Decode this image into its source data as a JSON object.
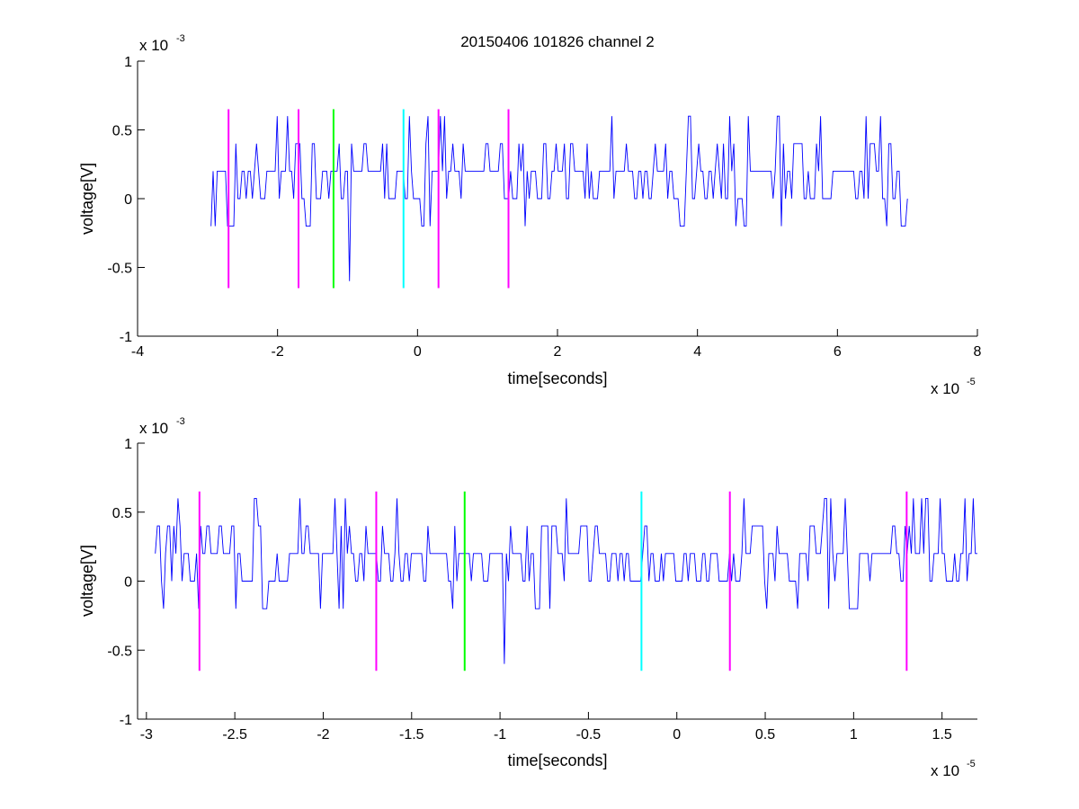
{
  "colors": {
    "background": "#ffffff",
    "axis": "#000000",
    "signal": "#0000ff",
    "marker_magenta": "#ff00ff",
    "marker_green": "#00ff00",
    "marker_cyan": "#00ffff"
  },
  "chart_data": [
    {
      "type": "line",
      "title": "20150406 101826 channel 2",
      "xlabel": "time[seconds]",
      "ylabel": "voltage[V]",
      "x_exponent": {
        "base": "x 10",
        "power": "-5"
      },
      "y_exponent": {
        "base": "x 10",
        "power": "-3"
      },
      "xlim": [
        -4,
        8
      ],
      "ylim": [
        -1,
        1
      ],
      "xticks": [
        "-4",
        "-2",
        "0",
        "2",
        "4",
        "6",
        "8"
      ],
      "yticks": [
        "-1",
        "-0.5",
        "0",
        "0.5",
        "1"
      ],
      "grid": false,
      "series": [
        {
          "style": "noise",
          "color": "#0000ff",
          "x_range": [
            -2.95,
            7.0
          ],
          "baseline": 0.2,
          "levels": [
            -0.6,
            -0.2,
            0,
            0.2,
            0.4,
            0.6
          ],
          "dips": [
            {
              "x": -0.97,
              "y": -0.6
            },
            {
              "x": -2.9,
              "y": -0.2
            }
          ],
          "spikes": [
            {
              "x": -1.85,
              "y": 0.6
            },
            {
              "x": 0.4,
              "y": 0.6
            },
            {
              "x": 4.45,
              "y": 0.6
            },
            {
              "x": 5.75,
              "y": 0.6
            },
            {
              "x": 6.4,
              "y": 0.6
            }
          ]
        }
      ],
      "markers": [
        {
          "x": -2.7,
          "color": "#ff00ff",
          "y_range": [
            -0.65,
            0.65
          ]
        },
        {
          "x": -1.7,
          "color": "#ff00ff",
          "y_range": [
            -0.65,
            0.65
          ]
        },
        {
          "x": -1.2,
          "color": "#00ff00",
          "y_range": [
            -0.65,
            0.65
          ]
        },
        {
          "x": -0.2,
          "color": "#00ffff",
          "y_range": [
            -0.65,
            0.65
          ]
        },
        {
          "x": 0.3,
          "color": "#ff00ff",
          "y_range": [
            -0.65,
            0.65
          ]
        },
        {
          "x": 1.3,
          "color": "#ff00ff",
          "y_range": [
            -0.65,
            0.65
          ]
        }
      ]
    },
    {
      "type": "line",
      "title": "",
      "xlabel": "time[seconds]",
      "ylabel": "voltage[V]",
      "x_exponent": {
        "base": "x 10",
        "power": "-5"
      },
      "y_exponent": {
        "base": "x 10",
        "power": "-3"
      },
      "xlim": [
        -3.05,
        1.7
      ],
      "ylim": [
        -1,
        1
      ],
      "xticks": [
        "-3",
        "-2.5",
        "-2",
        "-1.5",
        "-1",
        "-0.5",
        "0",
        "0.5",
        "1",
        "1.5"
      ],
      "yticks": [
        "-1",
        "-0.5",
        "0",
        "0.5",
        "1"
      ],
      "grid": false,
      "series": [
        {
          "style": "noise",
          "color": "#0000ff",
          "x_range": [
            -2.95,
            1.7
          ],
          "baseline": 0.2,
          "levels": [
            -0.6,
            -0.2,
            0,
            0.2,
            0.4,
            0.6
          ],
          "dips": [
            {
              "x": -0.97,
              "y": -0.6
            },
            {
              "x": -2.9,
              "y": -0.2
            },
            {
              "x": -2.7,
              "y": -0.2
            }
          ],
          "spikes": [
            {
              "x": -1.87,
              "y": 0.6
            },
            {
              "x": 0.38,
              "y": 0.6
            }
          ]
        }
      ],
      "markers": [
        {
          "x": -2.7,
          "color": "#ff00ff",
          "y_range": [
            -0.65,
            0.65
          ]
        },
        {
          "x": -1.7,
          "color": "#ff00ff",
          "y_range": [
            -0.65,
            0.65
          ]
        },
        {
          "x": -1.2,
          "color": "#00ff00",
          "y_range": [
            -0.65,
            0.65
          ]
        },
        {
          "x": -0.2,
          "color": "#00ffff",
          "y_range": [
            -0.65,
            0.65
          ]
        },
        {
          "x": 0.3,
          "color": "#ff00ff",
          "y_range": [
            -0.65,
            0.65
          ]
        },
        {
          "x": 1.3,
          "color": "#ff00ff",
          "y_range": [
            -0.65,
            0.65
          ]
        }
      ]
    }
  ]
}
